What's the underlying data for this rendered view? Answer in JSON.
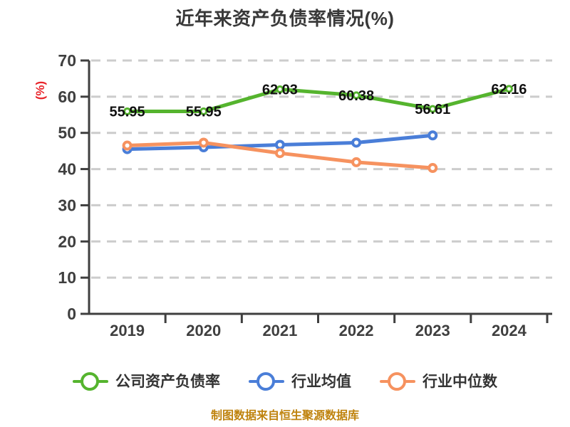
{
  "title": "近年来资产负债率情况(%)",
  "footer": "制图数据来自恒生聚源数据库",
  "colors": {
    "title_text": "#393939",
    "axis": "#3f3f3f",
    "tick_label": "#3f3f3f",
    "gridline": "#cccccc",
    "data_label": "#111111",
    "y_unit_label": "#e8242a",
    "footer_text": "#bf830e",
    "series_company": "#55b42e",
    "series_industry_mean": "#4a7ed8",
    "series_industry_median": "#f6925f"
  },
  "y_axis": {
    "unit": "(%)",
    "ticks": [
      "0",
      "10",
      "20",
      "30",
      "40",
      "50",
      "60",
      "70"
    ]
  },
  "x_axis": {
    "ticks": [
      "2019",
      "2020",
      "2021",
      "2022",
      "2023",
      "2024"
    ]
  },
  "legend": {
    "items": [
      {
        "label": "公司资产负债率",
        "slug": "company-debt-ratio",
        "color": "#55b42e"
      },
      {
        "label": "行业均值",
        "slug": "industry-mean",
        "color": "#4a7ed8"
      },
      {
        "label": "行业中位数",
        "slug": "industry-median",
        "color": "#f6925f"
      }
    ]
  },
  "chart_data": {
    "type": "line",
    "title": "近年来资产负债率情况(%)",
    "xlabel": "",
    "ylabel": "(%)",
    "categories": [
      "2019",
      "2020",
      "2021",
      "2022",
      "2023",
      "2024"
    ],
    "ylim": [
      0,
      70
    ],
    "ytick_interval": 10,
    "grid": "horizontal-dashed",
    "legend_position": "bottom",
    "series": [
      {
        "name": "公司资产负债率",
        "slug": "company-debt-ratio",
        "color": "#55b42e",
        "values": [
          55.95,
          55.95,
          62.03,
          60.38,
          56.61,
          62.16
        ],
        "point_labels": [
          "55.95",
          "55.95",
          "62.03",
          "60.38",
          "56.61",
          "62.16"
        ]
      },
      {
        "name": "行业均值",
        "slug": "industry-mean",
        "color": "#4a7ed8",
        "values": [
          45.5,
          46.0,
          46.7,
          47.3,
          49.3
        ]
      },
      {
        "name": "行业中位数",
        "slug": "industry-median",
        "color": "#f6925f",
        "values": [
          46.5,
          47.3,
          44.4,
          41.9,
          40.3
        ]
      }
    ]
  }
}
